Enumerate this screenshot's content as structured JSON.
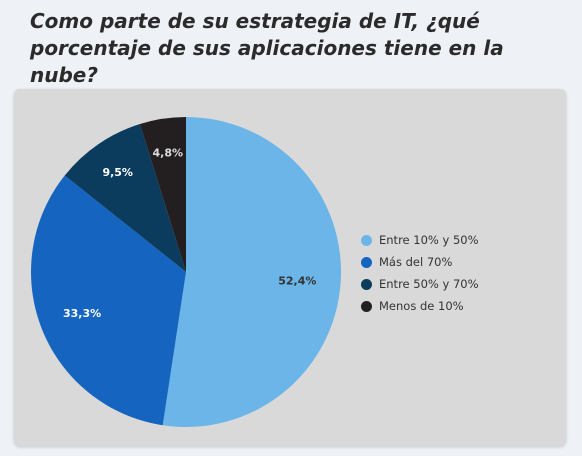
{
  "chart_data": {
    "type": "pie",
    "title": "Como parte de su estrategia de IT, ¿qué porcentaje de sus aplicaciones tiene en la nube?",
    "slices": [
      {
        "name": "Entre 10% y 50%",
        "value": 52.4,
        "label": "52,4%",
        "color": "#6cb5e8",
        "label_color": "#333333"
      },
      {
        "name": "Más del 70%",
        "value": 33.3,
        "label": "33,3%",
        "color": "#1565c0",
        "label_color": "#ffffff"
      },
      {
        "name": "Entre 50% y 70%",
        "value": 9.5,
        "label": "9,5%",
        "color": "#0b3c5d",
        "label_color": "#ffffff"
      },
      {
        "name": "Menos de 10%",
        "value": 4.8,
        "label": "4,8%",
        "color": "#231f20",
        "label_color": "#dddddd"
      }
    ],
    "start": "top",
    "direction": "clockwise",
    "legend_position": "right"
  }
}
